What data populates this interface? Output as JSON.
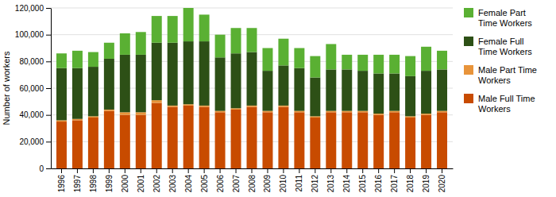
{
  "chart_data": {
    "type": "bar",
    "stacked": true,
    "ylabel": "Number of workers",
    "categories": [
      "1996",
      "1997",
      "1998",
      "1999",
      "2000",
      "2001",
      "2002",
      "2003",
      "2004",
      "2005",
      "2006",
      "2007",
      "2008",
      "2009",
      "2010",
      "2011",
      "2012",
      "2013",
      "2014",
      "2015",
      "2016",
      "2017",
      "2018",
      "2019",
      "2020"
    ],
    "series": [
      {
        "name": "Male Full Time\nWorkers",
        "color": "#c84b00",
        "values": [
          35000,
          36000,
          38000,
          43000,
          40000,
          40000,
          49000,
          46000,
          47000,
          46000,
          42000,
          44000,
          46000,
          42000,
          46000,
          42000,
          38000,
          42000,
          42000,
          42000,
          40000,
          42000,
          38000,
          40000,
          42000
        ]
      },
      {
        "name": "Male Part Time\nWorkers",
        "color": "#e8943a",
        "values": [
          1000,
          1000,
          1000,
          1000,
          2000,
          2000,
          2000,
          1000,
          1000,
          1000,
          1000,
          1000,
          1000,
          1000,
          1000,
          1000,
          1000,
          1000,
          1000,
          1000,
          1000,
          1000,
          1000,
          1000,
          1000
        ]
      },
      {
        "name": "Female Full\nTime Workers",
        "color": "#2d5016",
        "values": [
          39000,
          38000,
          37000,
          38000,
          43000,
          43000,
          43000,
          47000,
          47000,
          48000,
          40000,
          41000,
          40000,
          30000,
          30000,
          32000,
          29000,
          31000,
          31000,
          30000,
          30000,
          28000,
          30000,
          32000,
          31000
        ]
      },
      {
        "name": "Female Part\nTime Workers",
        "color": "#5ab033",
        "values": [
          11000,
          13000,
          11000,
          12000,
          16000,
          17000,
          20000,
          20000,
          25000,
          20000,
          17000,
          19000,
          18000,
          17000,
          20000,
          15000,
          16000,
          19000,
          11000,
          12000,
          14000,
          14000,
          15000,
          18000,
          14000
        ]
      }
    ],
    "ylim": [
      0,
      120000
    ],
    "yticks": [
      0,
      {
        "value": 20000,
        "label": "20,000"
      },
      {
        "value": 40000,
        "label": "40,000"
      },
      {
        "value": 60000,
        "label": "60,000"
      },
      {
        "value": 80000,
        "label": "80,000"
      },
      {
        "value": 100000,
        "label": "100,000"
      },
      {
        "value": 120000,
        "label": "120,000"
      }
    ],
    "grid": true,
    "legend": "upper right"
  }
}
